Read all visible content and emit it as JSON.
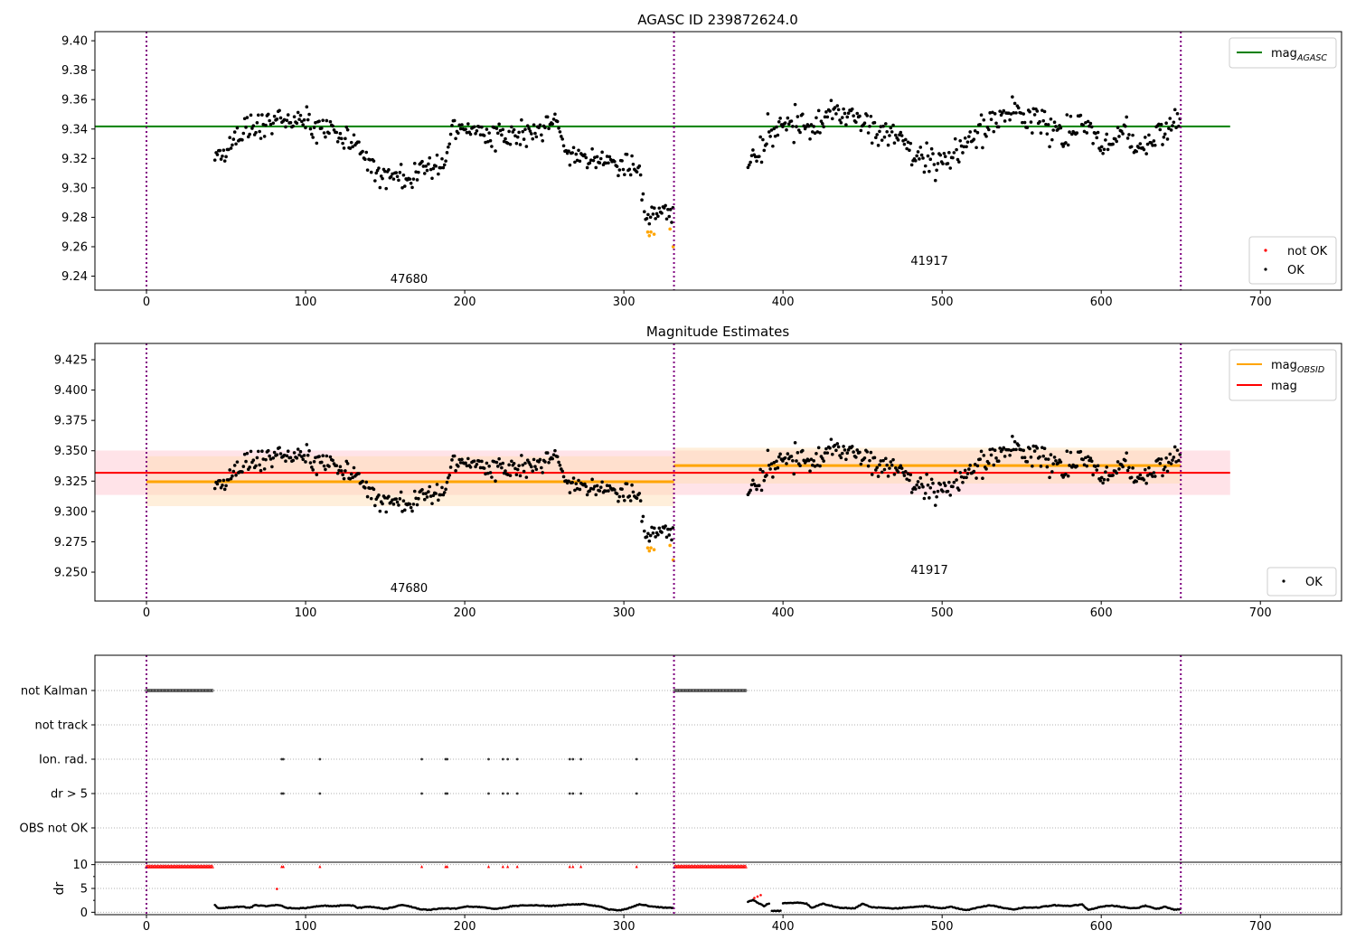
{
  "figure_title": "AGASC ID 239872624.0",
  "chart_data": [
    {
      "id": "agasc-panel",
      "type": "scatter",
      "title": "AGASC ID 239872624.0",
      "xlabel": "",
      "ylabel": "",
      "xlim": [
        -32.4,
        751
      ],
      "ylim": [
        9.2305,
        9.4062
      ],
      "xticks": [
        "0",
        "100",
        "200",
        "300",
        "400",
        "500",
        "600",
        "700"
      ],
      "yticks": [
        "9.24",
        "9.26",
        "9.28",
        "9.30",
        "9.32",
        "9.34",
        "9.36",
        "9.38",
        "9.40"
      ],
      "obs_boundaries": [
        0,
        331.5,
        650
      ],
      "obsid_labels": [
        {
          "text": "47680",
          "x": 165,
          "y": 9.2355
        },
        {
          "text": "41917",
          "x": 492,
          "y": 9.2478
        }
      ],
      "hlines": [
        {
          "name": "mag_AGASC",
          "value": 9.3418,
          "x_range": [
            -32.4,
            681
          ],
          "color": "#008000"
        }
      ],
      "legend_lines": [
        {
          "label": "mag",
          "sub": "AGASC",
          "color": "#008000"
        }
      ],
      "legend_points": [
        {
          "label": "not OK",
          "color": "#ff0000"
        },
        {
          "label": "OK",
          "color": "#000000"
        }
      ],
      "legend_lines_position": "top-right",
      "legend_points_position": "lower-right"
    },
    {
      "id": "estimates-panel",
      "type": "scatter",
      "title": "Magnitude Estimates",
      "xlim": [
        -32.4,
        751
      ],
      "ylim": [
        9.2262,
        9.4384
      ],
      "xticks": [
        "0",
        "100",
        "200",
        "300",
        "400",
        "500",
        "600",
        "700"
      ],
      "yticks": [
        "9.250",
        "9.275",
        "9.300",
        "9.325",
        "9.350",
        "9.375",
        "9.400",
        "9.425"
      ],
      "obs_boundaries": [
        0,
        331.5,
        650
      ],
      "obsid_labels": [
        {
          "text": "47680",
          "x": 165,
          "y": 9.2335
        },
        {
          "text": "41917",
          "x": 492,
          "y": 9.2485
        }
      ],
      "bands": [
        {
          "name": "mag-band",
          "x_range": [
            -32.4,
            681
          ],
          "y_range": [
            9.3136,
            9.3502
          ],
          "color": "#ffc0cb"
        },
        {
          "name": "obsid-47680-band",
          "x_range": [
            0,
            331.5
          ],
          "y_range": [
            9.3044,
            9.3455
          ],
          "color": "#ffdcb0"
        },
        {
          "name": "obsid-41917-band",
          "x_range": [
            331.5,
            650
          ],
          "y_range": [
            9.323,
            9.3525
          ],
          "color": "#ffdcb0"
        }
      ],
      "hlines": [
        {
          "name": "mag",
          "value": 9.3318,
          "x_range": [
            -32.4,
            681
          ],
          "color": "#ff0000"
        },
        {
          "name": "mag_OBSID-47680",
          "value": 9.3245,
          "x_range": [
            0,
            331.5
          ],
          "color": "#ffa500"
        },
        {
          "name": "mag_OBSID-41917",
          "value": 9.3378,
          "x_range": [
            331.5,
            650
          ],
          "color": "#ffa500"
        }
      ],
      "legend_lines": [
        {
          "label": "mag",
          "sub": "OBSID",
          "color": "#ffa500"
        },
        {
          "label": "mag",
          "sub": "",
          "color": "#ff0000"
        }
      ],
      "legend_points": [
        {
          "label": "OK",
          "color": "#000000"
        }
      ],
      "legend_lines_position": "top-right",
      "legend_points_position": "lower-right"
    },
    {
      "id": "flags-panel",
      "type": "scatter",
      "xlim": [
        -32.4,
        751
      ],
      "categories": [
        "not Kalman",
        "not track",
        "Ion. rad.",
        "dr > 5",
        "OBS not OK"
      ],
      "obs_boundaries": [
        0,
        331.5,
        650
      ],
      "flag_points": {
        "not Kalman": {
          "ranges": [
            [
              0,
              42
            ],
            [
              332,
              377
            ]
          ]
        },
        "not track": {
          "ranges": []
        },
        "Ion. rad.": {
          "points": [
            85,
            86,
            109,
            173,
            188,
            189,
            215,
            224,
            227,
            233,
            266,
            268,
            273,
            308
          ]
        },
        "dr > 5": {
          "points": [
            85,
            86,
            109,
            173,
            188,
            189,
            215,
            224,
            227,
            233,
            266,
            268,
            273,
            308
          ]
        },
        "OBS not OK": {
          "ranges": []
        }
      }
    },
    {
      "id": "dr-panel",
      "type": "scatter",
      "ylabel": "dr",
      "xlim": [
        -32.4,
        751
      ],
      "ylim": [
        -0.5,
        10.5
      ],
      "xticks": [
        "0",
        "100",
        "200",
        "300",
        "400",
        "500",
        "600",
        "700"
      ],
      "yticks": [
        "0",
        "5",
        "10"
      ],
      "clipped_red_ranges": [
        [
          0,
          42
        ],
        [
          332,
          377
        ]
      ],
      "clipped_red_points": [
        85,
        86,
        109,
        173,
        188,
        189,
        215,
        224,
        227,
        233,
        266,
        268,
        273,
        308
      ],
      "red_outliers": [
        {
          "x": 82,
          "y": 4.9
        },
        {
          "x": 382,
          "y": 3.0
        },
        {
          "x": 384,
          "y": 3.3
        },
        {
          "x": 386,
          "y": 3.6
        }
      ],
      "dr_trace": {
        "segments": [
          {
            "x_range": [
              43,
              331
            ],
            "knots": [
              [
                43,
                1.6
              ],
              [
                45,
                0.8
              ],
              [
                55,
                1.1
              ],
              [
                60,
                1.2
              ],
              [
                65,
                0.9
              ],
              [
                68,
                1.5
              ],
              [
                75,
                1.3
              ],
              [
                80,
                1.5
              ],
              [
                84,
                1.5
              ],
              [
                88,
                0.9
              ],
              [
                95,
                0.8
              ],
              [
                100,
                0.9
              ],
              [
                110,
                1.4
              ],
              [
                118,
                1.3
              ],
              [
                125,
                1.5
              ],
              [
                130,
                1.4
              ],
              [
                133,
                0.9
              ],
              [
                140,
                1.2
              ],
              [
                150,
                0.7
              ],
              [
                160,
                1.5
              ],
              [
                165,
                1.3
              ],
              [
                172,
                0.6
              ],
              [
                178,
                0.5
              ],
              [
                185,
                0.8
              ],
              [
                195,
                0.8
              ],
              [
                200,
                1.2
              ],
              [
                210,
                1.1
              ],
              [
                220,
                0.7
              ],
              [
                230,
                1.3
              ],
              [
                240,
                1.5
              ],
              [
                255,
                1.3
              ],
              [
                265,
                1.6
              ],
              [
                275,
                1.7
              ],
              [
                285,
                1.2
              ],
              [
                290,
                0.6
              ],
              [
                298,
                0.4
              ],
              [
                303,
                0.9
              ],
              [
                310,
                1.7
              ],
              [
                318,
                1.2
              ],
              [
                325,
                1.0
              ],
              [
                331,
                0.9
              ]
            ]
          },
          {
            "x_range": [
              378,
              392
            ],
            "knots": [
              [
                378,
                2.2
              ],
              [
                381,
                2.6
              ],
              [
                388,
                1.3
              ],
              [
                392,
                2.0
              ]
            ]
          },
          {
            "x_range": [
              393,
              399
            ],
            "knots": [
              [
                393,
                0.3
              ],
              [
                399,
                0.3
              ]
            ]
          },
          {
            "x_range": [
              400,
              650
            ],
            "knots": [
              [
                400,
                1.9
              ],
              [
                410,
                2.0
              ],
              [
                415,
                1.8
              ],
              [
                418,
                0.9
              ],
              [
                425,
                1.8
              ],
              [
                435,
                1.0
              ],
              [
                445,
                0.8
              ],
              [
                450,
                1.8
              ],
              [
                455,
                1.1
              ],
              [
                470,
                0.8
              ],
              [
                490,
                1.3
              ],
              [
                500,
                0.8
              ],
              [
                505,
                1.2
              ],
              [
                515,
                0.4
              ],
              [
                520,
                0.8
              ],
              [
                530,
                1.5
              ],
              [
                540,
                0.8
              ],
              [
                545,
                0.6
              ],
              [
                552,
                1.0
              ],
              [
                560,
                1.0
              ],
              [
                570,
                1.5
              ],
              [
                578,
                1.3
              ],
              [
                588,
                1.6
              ],
              [
                592,
                0.5
              ],
              [
                600,
                1.2
              ],
              [
                607,
                1.4
              ],
              [
                618,
                0.9
              ],
              [
                623,
                0.9
              ],
              [
                628,
                1.4
              ],
              [
                635,
                0.7
              ],
              [
                640,
                1.2
              ],
              [
                646,
                0.5
              ],
              [
                650,
                0.7
              ]
            ]
          }
        ]
      }
    }
  ],
  "mag_series": {
    "seed": 239872624,
    "obs1": {
      "x_range": [
        43,
        331
      ],
      "trend_knots": [
        [
          43,
          9.322
        ],
        [
          60,
          9.338
        ],
        [
          80,
          9.347
        ],
        [
          100,
          9.345
        ],
        [
          115,
          9.342
        ],
        [
          130,
          9.333
        ],
        [
          145,
          9.308
        ],
        [
          165,
          9.309
        ],
        [
          180,
          9.316
        ],
        [
          188,
          9.313
        ],
        [
          192,
          9.342
        ],
        [
          210,
          9.338
        ],
        [
          230,
          9.334
        ],
        [
          250,
          9.34
        ],
        [
          258,
          9.345
        ],
        [
          265,
          9.322
        ],
        [
          290,
          9.318
        ],
        [
          310,
          9.313
        ],
        [
          313,
          9.28
        ],
        [
          325,
          9.285
        ],
        [
          331,
          9.28
        ]
      ],
      "scatter": 0.0085,
      "not_ok_points": [
        {
          "x": 315,
          "y": 9.27
        },
        {
          "x": 316,
          "y": 9.2675
        },
        {
          "x": 317,
          "y": 9.27
        },
        {
          "x": 319,
          "y": 9.2685
        },
        {
          "x": 329,
          "y": 9.272
        },
        {
          "x": 331,
          "y": 9.26
        }
      ]
    },
    "obs2": {
      "x_range": [
        378,
        650
      ],
      "trend_knots": [
        [
          378,
          9.315
        ],
        [
          390,
          9.335
        ],
        [
          400,
          9.343
        ],
        [
          420,
          9.345
        ],
        [
          430,
          9.352
        ],
        [
          440,
          9.35
        ],
        [
          455,
          9.342
        ],
        [
          470,
          9.337
        ],
        [
          485,
          9.322
        ],
        [
          500,
          9.318
        ],
        [
          510,
          9.325
        ],
        [
          525,
          9.338
        ],
        [
          545,
          9.352
        ],
        [
          560,
          9.345
        ],
        [
          575,
          9.335
        ],
        [
          590,
          9.345
        ],
        [
          600,
          9.325
        ],
        [
          615,
          9.34
        ],
        [
          625,
          9.325
        ],
        [
          640,
          9.34
        ],
        [
          650,
          9.35
        ]
      ],
      "scatter": 0.0095
    }
  }
}
